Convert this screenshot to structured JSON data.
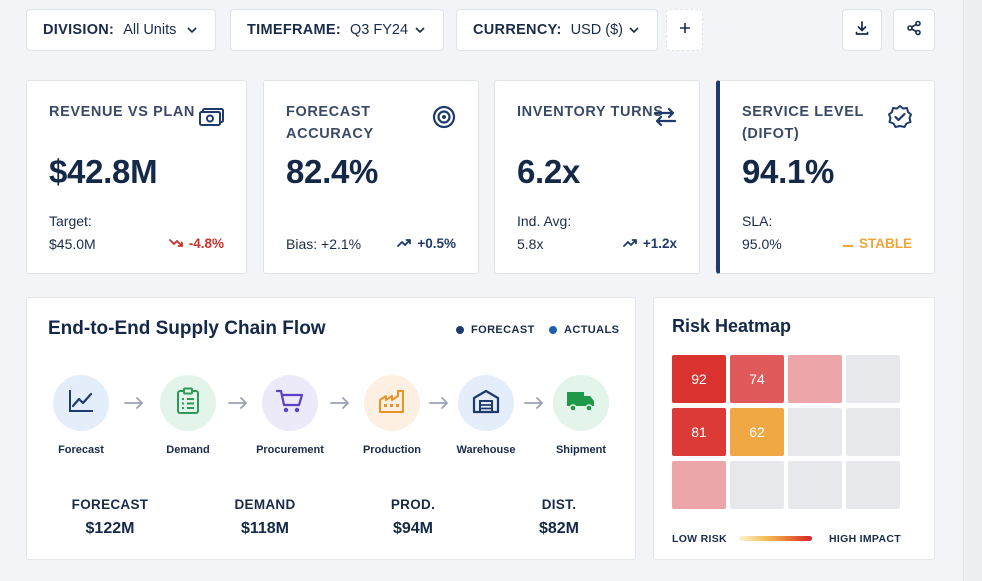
{
  "filters": [
    {
      "key": "DIVISION:",
      "value": "All Units"
    },
    {
      "key": "TIMEFRAME:",
      "value": "Q3 FY24"
    },
    {
      "key": "CURRENCY:",
      "value": "USD ($)"
    }
  ],
  "toolbar": {
    "add_icon": "plus-icon",
    "download_icon": "download-icon",
    "share_icon": "share-icon"
  },
  "kpis": [
    {
      "label": "REVENUE VS PLAN",
      "icon": "banknote-icon",
      "value": "$42.8M",
      "sub1": "Target:",
      "sub2": "$45.0M",
      "delta": "-4.8%",
      "trend": "down",
      "color": "#d0302b"
    },
    {
      "label": "FORECAST ACCURACY",
      "icon": "target-icon",
      "value": "82.4%",
      "sub1": "",
      "sub2": "Bias: +2.1%",
      "delta": "+0.5%",
      "trend": "up",
      "color": "#1f3b6e"
    },
    {
      "label": "INVENTORY TURNS",
      "icon": "swap-arrows-icon",
      "value": "6.2x",
      "sub1": "Ind. Avg:",
      "sub2": "5.8x",
      "delta": "+1.2x",
      "trend": "up",
      "color": "#1f3b6e"
    },
    {
      "label": "SERVICE LEVEL (DIFOT)",
      "icon": "verified-badge-icon",
      "value": "94.1%",
      "sub1": "SLA:",
      "sub2": "95.0%",
      "delta": "STABLE",
      "trend": "flat",
      "color": "#f0a43a"
    }
  ],
  "flow": {
    "title": "End-to-End Supply Chain Flow",
    "legend": [
      {
        "label": "FORECAST",
        "color": "#1f3b6e"
      },
      {
        "label": "ACTUALS",
        "color": "#1f5fb0"
      }
    ],
    "steps": [
      {
        "label": "Forecast",
        "icon": "line-chart-icon",
        "bg": "#e4eefa",
        "fg": "#1f3b6e"
      },
      {
        "label": "Demand",
        "icon": "clipboard-icon",
        "bg": "#e3f4ea",
        "fg": "#2e9a57"
      },
      {
        "label": "Procurement",
        "icon": "cart-icon",
        "bg": "#ece9f9",
        "fg": "#5b3fc4"
      },
      {
        "label": "Production",
        "icon": "factory-icon",
        "bg": "#fdf0e2",
        "fg": "#e79327"
      },
      {
        "label": "Warehouse",
        "icon": "warehouse-icon",
        "bg": "#e4eefa",
        "fg": "#1f3b6e"
      },
      {
        "label": "Shipment",
        "icon": "truck-icon",
        "bg": "#e3f4ea",
        "fg": "#1f9a4a"
      }
    ],
    "stats": [
      {
        "label": "FORECAST",
        "value": "$122M"
      },
      {
        "label": "DEMAND",
        "value": "$118M"
      },
      {
        "label": "PROD.",
        "value": "$94M"
      },
      {
        "label": "DIST.",
        "value": "$82M"
      }
    ]
  },
  "heatmap": {
    "title": "Risk Heatmap",
    "rows": [
      [
        {
          "label": "92",
          "color": "#d9322f"
        },
        {
          "label": "74",
          "color": "#e05a5c"
        },
        {
          "label": "",
          "color": "#eca5a8"
        },
        {
          "label": "",
          "color": "#e7e8ec"
        }
      ],
      [
        {
          "label": "81",
          "color": "#dc3a37"
        },
        {
          "label": "62",
          "color": "#f0a845"
        },
        {
          "label": "",
          "color": "#e7e8ec"
        },
        {
          "label": "",
          "color": "#e7e8ec"
        }
      ],
      [
        {
          "label": "",
          "color": "#eca5a8"
        },
        {
          "label": "",
          "color": "#e7e8ec"
        },
        {
          "label": "",
          "color": "#e7e8ec"
        },
        {
          "label": "",
          "color": "#e7e8ec"
        }
      ]
    ],
    "low_label": "LOW RISK",
    "high_label": "HIGH IMPACT"
  }
}
